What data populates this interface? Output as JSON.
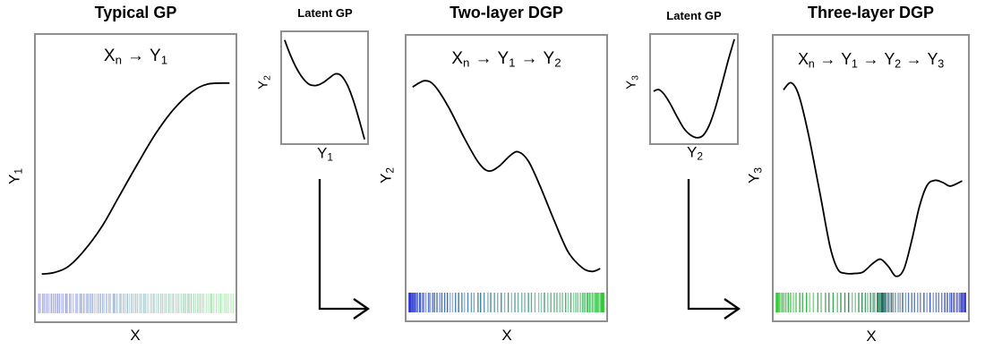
{
  "figure": {
    "background": "#ffffff",
    "curve_color": "#000000",
    "box_border_color": "#909090",
    "text_color": "#000000"
  },
  "chart_data": [
    {
      "id": "typical-gp",
      "type": "line",
      "title": "Typical GP",
      "annotation_tokens": [
        [
          "X",
          "n"
        ],
        [
          "→",
          ""
        ],
        [
          "Y",
          "1"
        ]
      ],
      "ylabel_tokens": [
        [
          "Y",
          "1"
        ]
      ],
      "xlabel_tokens": [
        [
          "X",
          ""
        ]
      ],
      "curve": [
        [
          0.03,
          0.835
        ],
        [
          0.09,
          0.83
        ],
        [
          0.16,
          0.81
        ],
        [
          0.24,
          0.755
        ],
        [
          0.33,
          0.67
        ],
        [
          0.42,
          0.56
        ],
        [
          0.51,
          0.45
        ],
        [
          0.6,
          0.345
        ],
        [
          0.69,
          0.26
        ],
        [
          0.78,
          0.2
        ],
        [
          0.86,
          0.172
        ],
        [
          0.97,
          0.168
        ]
      ],
      "rug": {
        "n": 95,
        "warp": "uniform",
        "stops": [
          "#5858e0",
          "#74df74"
        ],
        "opacity": 0.5
      }
    },
    {
      "id": "latent-gp-1",
      "type": "line",
      "title": "Latent GP",
      "annotation_tokens": [],
      "ylabel_tokens": [
        [
          "Y",
          "2"
        ]
      ],
      "xlabel_tokens": [
        [
          "Y",
          "1"
        ]
      ],
      "curve": [
        [
          0.03,
          0.07
        ],
        [
          0.09,
          0.19
        ],
        [
          0.16,
          0.31
        ],
        [
          0.24,
          0.41
        ],
        [
          0.32,
          0.47
        ],
        [
          0.4,
          0.48
        ],
        [
          0.48,
          0.455
        ],
        [
          0.56,
          0.41
        ],
        [
          0.63,
          0.375
        ],
        [
          0.7,
          0.395
        ],
        [
          0.77,
          0.48
        ],
        [
          0.84,
          0.62
        ],
        [
          0.91,
          0.8
        ],
        [
          0.97,
          0.965
        ]
      ],
      "rug": null
    },
    {
      "id": "two-layer-dgp",
      "type": "line",
      "title": "Two-layer DGP",
      "annotation_tokens": [
        [
          "X",
          "n"
        ],
        [
          "→",
          ""
        ],
        [
          "Y",
          "1"
        ],
        [
          "→",
          ""
        ],
        [
          "Y",
          "2"
        ]
      ],
      "ylabel_tokens": [
        [
          "Y",
          "2"
        ]
      ],
      "xlabel_tokens": [
        [
          "X",
          ""
        ]
      ],
      "curve": [
        [
          0.03,
          0.18
        ],
        [
          0.09,
          0.158
        ],
        [
          0.14,
          0.175
        ],
        [
          0.21,
          0.25
        ],
        [
          0.29,
          0.36
        ],
        [
          0.36,
          0.445
        ],
        [
          0.41,
          0.475
        ],
        [
          0.46,
          0.46
        ],
        [
          0.52,
          0.42
        ],
        [
          0.56,
          0.408
        ],
        [
          0.61,
          0.44
        ],
        [
          0.67,
          0.53
        ],
        [
          0.74,
          0.65
        ],
        [
          0.81,
          0.76
        ],
        [
          0.88,
          0.815
        ],
        [
          0.93,
          0.828
        ],
        [
          0.97,
          0.818
        ]
      ],
      "rug": {
        "n": 90,
        "warp": "cosine",
        "stops": [
          "#2626dd",
          "#17cc17"
        ],
        "opacity": 0.7
      }
    },
    {
      "id": "latent-gp-2",
      "type": "line",
      "title": "Latent GP",
      "annotation_tokens": [],
      "ylabel_tokens": [
        [
          "Y",
          "3"
        ]
      ],
      "xlabel_tokens": [
        [
          "Y",
          "2"
        ]
      ],
      "curve": [
        [
          0.03,
          0.52
        ],
        [
          0.09,
          0.505
        ],
        [
          0.15,
          0.545
        ],
        [
          0.22,
          0.63
        ],
        [
          0.3,
          0.75
        ],
        [
          0.38,
          0.86
        ],
        [
          0.46,
          0.925
        ],
        [
          0.54,
          0.95
        ],
        [
          0.61,
          0.925
        ],
        [
          0.68,
          0.83
        ],
        [
          0.75,
          0.67
        ],
        [
          0.82,
          0.47
        ],
        [
          0.9,
          0.23
        ],
        [
          0.97,
          0.04
        ]
      ],
      "rug": null
    },
    {
      "id": "three-layer-dgp",
      "type": "line",
      "title": "Three-layer DGP",
      "annotation_tokens": [
        [
          "X",
          "n"
        ],
        [
          "→",
          ""
        ],
        [
          "Y",
          "1"
        ],
        [
          "→",
          ""
        ],
        [
          "Y",
          "2"
        ],
        [
          "→",
          ""
        ],
        [
          "Y",
          "3"
        ]
      ],
      "ylabel_tokens": [
        [
          "Y",
          "3"
        ]
      ],
      "xlabel_tokens": [
        [
          "X",
          ""
        ]
      ],
      "curve": [
        [
          0.05,
          0.19
        ],
        [
          0.09,
          0.165
        ],
        [
          0.13,
          0.21
        ],
        [
          0.18,
          0.35
        ],
        [
          0.24,
          0.56
        ],
        [
          0.29,
          0.74
        ],
        [
          0.33,
          0.82
        ],
        [
          0.37,
          0.835
        ],
        [
          0.42,
          0.835
        ],
        [
          0.46,
          0.83
        ],
        [
          0.51,
          0.8
        ],
        [
          0.55,
          0.785
        ],
        [
          0.59,
          0.81
        ],
        [
          0.63,
          0.845
        ],
        [
          0.67,
          0.82
        ],
        [
          0.71,
          0.72
        ],
        [
          0.75,
          0.6
        ],
        [
          0.79,
          0.525
        ],
        [
          0.83,
          0.508
        ],
        [
          0.87,
          0.515
        ],
        [
          0.91,
          0.528
        ],
        [
          0.97,
          0.51
        ]
      ],
      "rug": {
        "n": 85,
        "warp": "double",
        "knot": 0.56,
        "stops": [
          "#22cc22",
          "#1d6b55",
          "#2424dd"
        ],
        "opacity": 0.75
      }
    }
  ],
  "arrows": [
    {
      "name": "latent-1-flow-arrow"
    },
    {
      "name": "latent-2-flow-arrow"
    }
  ]
}
